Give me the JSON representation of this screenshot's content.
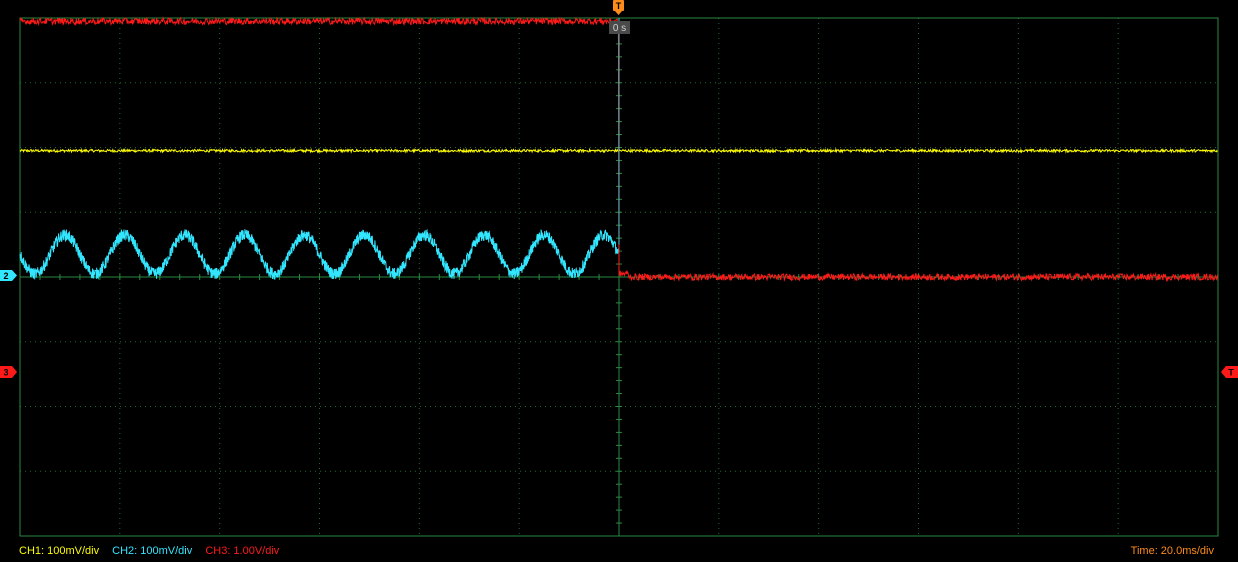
{
  "trigger": {
    "marker_label": "T",
    "time_label": "0 s",
    "marker_color": "#ff8c1a"
  },
  "markers": {
    "ch2": "2",
    "ch3": "3"
  },
  "colors": {
    "ch1": "#ffff00",
    "ch2": "#33e6ff",
    "ch3": "#ff1a1a",
    "grid": "#1e6b2e",
    "frame": "#2a8a3f",
    "time": "#ff8c1a"
  },
  "status": {
    "ch1": "CH1: 100mV/div",
    "ch2": "CH2: 100mV/div",
    "ch3": "CH3: 1.00V/div",
    "time": "Time: 20.0ms/div"
  },
  "chart_data": {
    "type": "line",
    "x_divisions": 12,
    "y_divisions": 8,
    "time_per_div_ms": 20,
    "trigger_time_ms": 0,
    "x_range_ms": [
      -120,
      120
    ],
    "grid": true,
    "series": [
      {
        "name": "CH1",
        "volts_per_div": 0.1,
        "level_div": 1.95,
        "noise_div": 0.02
      },
      {
        "name": "CH2",
        "volts_per_div": 0.1,
        "offset_div": 0.35,
        "amplitude_div": 0.3,
        "period_ms": 12,
        "noise_div": 0.09,
        "ends_ms": 0
      },
      {
        "name": "CH3",
        "volts_per_div": 1.0,
        "before_trigger_div": 3.95,
        "after_trigger_div": 0.0,
        "noise_div": 0.05
      }
    ]
  }
}
